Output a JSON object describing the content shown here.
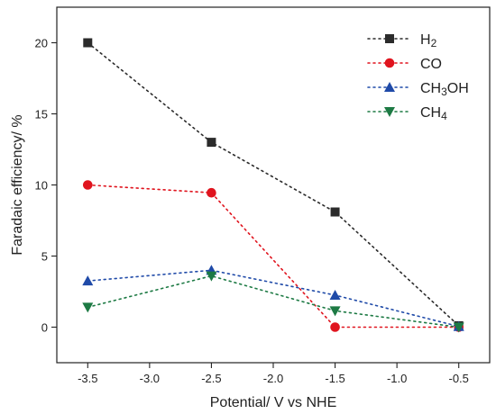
{
  "chart_data": {
    "type": "line",
    "title": "",
    "xlabel": "Potential/ V vs NHE",
    "ylabel": "Faradaic efficiency/ %",
    "x": [
      -3.5,
      -2.5,
      -1.5,
      -0.5
    ],
    "xlim": [
      -3.75,
      -0.25
    ],
    "ylim": [
      -2.5,
      22.5
    ],
    "xticks": [
      -3.5,
      -3.0,
      -2.5,
      -2.0,
      -1.5,
      -1.0,
      -0.5
    ],
    "xtick_labels": [
      "-3.5",
      "-3.0",
      "-2.5",
      "-2.0",
      "-1.5",
      "-1.0",
      "-0.5"
    ],
    "yticks": [
      0,
      5,
      10,
      15,
      20
    ],
    "ytick_labels": [
      "0",
      "5",
      "10",
      "15",
      "20"
    ],
    "grid": false,
    "legend_position": "top-right",
    "series": [
      {
        "name": "H",
        "sub": "2",
        "tail": "",
        "marker": "square",
        "color": "#2b2b2b",
        "values": [
          20.0,
          13.0,
          8.1,
          0.1
        ]
      },
      {
        "name": "CO",
        "sub": "",
        "tail": "",
        "marker": "circle",
        "color": "#e0141e",
        "values": [
          10.0,
          9.45,
          0.0,
          0.0
        ]
      },
      {
        "name": "CH",
        "sub": "3",
        "tail": "OH",
        "marker": "triangle-up",
        "color": "#1f4aa8",
        "values": [
          3.25,
          4.0,
          2.25,
          0.05
        ]
      },
      {
        "name": "CH",
        "sub": "4",
        "tail": "",
        "marker": "triangle-down",
        "color": "#1d7a44",
        "values": [
          1.4,
          3.6,
          1.15,
          0.0
        ]
      }
    ]
  }
}
